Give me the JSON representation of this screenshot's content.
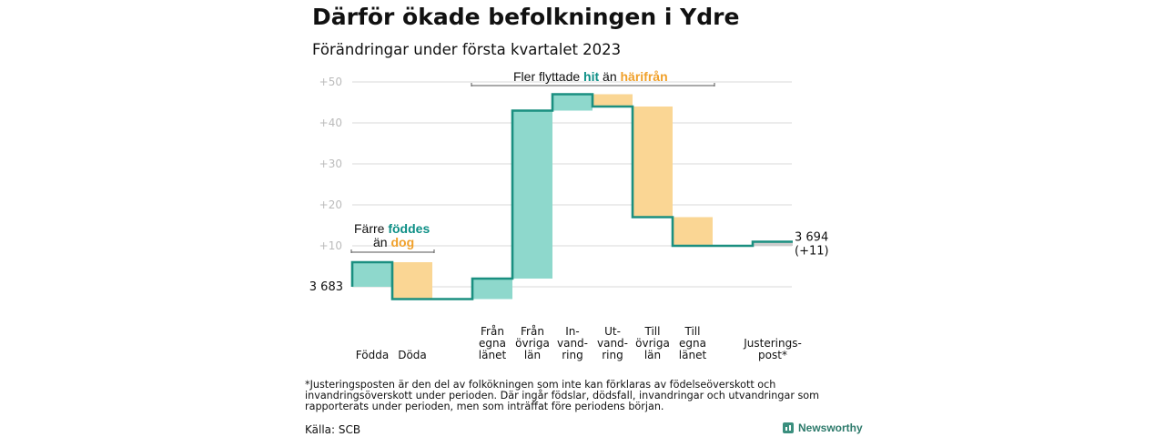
{
  "title": "Därför ökade befolkningen i Ydre",
  "subtitle": "Förändringar under första kvartalet 2023",
  "chart_data": {
    "type": "waterfall",
    "start_value_label": "3 683",
    "end_value_label": "3 694",
    "end_change_label": "(+11)",
    "ylim": [
      -3,
      50
    ],
    "yticks": [
      {
        "value": 10,
        "label": "+10"
      },
      {
        "value": 20,
        "label": "+20"
      },
      {
        "value": 30,
        "label": "+30"
      },
      {
        "value": 40,
        "label": "+40"
      },
      {
        "value": 50,
        "label": "+50"
      }
    ],
    "steps": [
      {
        "label_lines": [
          "Födda"
        ],
        "value": 6,
        "sign": "positive"
      },
      {
        "label_lines": [
          "Döda"
        ],
        "value": -9,
        "sign": "negative"
      },
      {
        "label_lines": [
          "Från",
          "egna",
          "länet"
        ],
        "value": 5,
        "sign": "positive"
      },
      {
        "label_lines": [
          "Från",
          "övriga",
          "län"
        ],
        "value": 41,
        "sign": "positive"
      },
      {
        "label_lines": [
          "In-",
          "vand-",
          "ring"
        ],
        "value": 4,
        "sign": "positive"
      },
      {
        "label_lines": [
          "Ut-",
          "vand-",
          "ring"
        ],
        "value": -3,
        "sign": "negative"
      },
      {
        "label_lines": [
          "Till",
          "övriga",
          "län"
        ],
        "value": -27,
        "sign": "negative"
      },
      {
        "label_lines": [
          "Till",
          "egna",
          "länet"
        ],
        "value": -7,
        "sign": "negative"
      },
      {
        "label_lines": [
          "Justerings-",
          "post*"
        ],
        "value": 1,
        "sign": "adjustment"
      }
    ],
    "annotations": {
      "births": {
        "line1": "Färre ",
        "line1_highlight": "föddes",
        "line2": "än ",
        "line2_highlight": "dog"
      },
      "migration": {
        "text1": "Fler flyttade ",
        "highlight1": "hit",
        "text2": " än ",
        "highlight2": "härifrån"
      }
    },
    "colors": {
      "positive": "#8ed8cc",
      "negative": "#fad694",
      "adjustment": "#cccccc",
      "line": "#1a8f80",
      "grid": "#d9d9d9",
      "tick": "#bbbbbb"
    }
  },
  "footnote": "*Justeringsposten är den del av folkökningen som inte kan förklaras av födelseöverskott och invandringsöverskott under perioden. Där ingår födslar, dödsfall, invandringar och utvandringar som rapporterats under perioden, men som inträffat före periodens början.",
  "source": "Källa: SCB",
  "logo_text": "Newsworthy"
}
